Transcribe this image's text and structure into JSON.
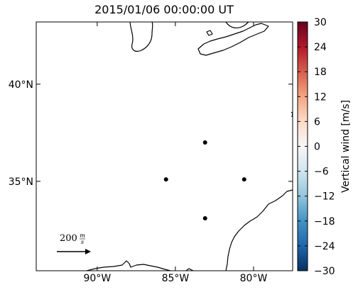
{
  "chart_data": {
    "type": "scatter",
    "title": "2015/01/06 00:00:00 UT",
    "xlim": [
      -93.9,
      -77.5
    ],
    "ylim": [
      30.4,
      43.2
    ],
    "xticks": [
      {
        "value": -90,
        "label": "90°W"
      },
      {
        "value": -85,
        "label": "85°W"
      },
      {
        "value": -80,
        "label": "80°W"
      }
    ],
    "yticks": [
      {
        "value": 35,
        "label": "35°N"
      },
      {
        "value": 40,
        "label": "40°N"
      }
    ],
    "series": [
      {
        "color": "#000000",
        "x": [
          -83.1,
          -85.6,
          -80.6,
          -83.1
        ],
        "values": [
          37.0,
          35.1,
          35.1,
          33.1
        ]
      }
    ],
    "wind_key": {
      "value": 200,
      "unit_numerator": "m",
      "unit_denominator": "s"
    },
    "colorbar": {
      "label": "Vertical wind [m/s]",
      "lim": [
        -30,
        30
      ],
      "ticks": [
        {
          "value": -30,
          "label": "−30"
        },
        {
          "value": -24,
          "label": "−24"
        },
        {
          "value": -18,
          "label": "−18"
        },
        {
          "value": -12,
          "label": "−12"
        },
        {
          "value": -6,
          "label": "−6"
        },
        0,
        6,
        12,
        18,
        24,
        30
      ],
      "colors": [
        "#053061",
        "#2166ac",
        "#4393c3",
        "#92c5de",
        "#d1e5f0",
        "#f7f7f7",
        "#fddbc7",
        "#f4a582",
        "#d6604d",
        "#b2182b",
        "#67001f"
      ]
    }
  }
}
